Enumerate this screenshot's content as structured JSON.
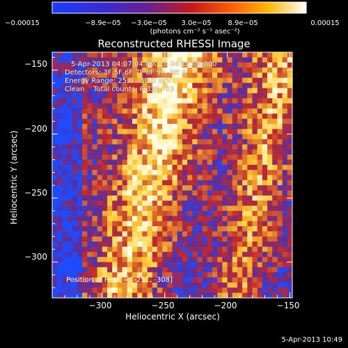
{
  "colorbar": {
    "ticks": [
      "-0.00015",
      "−8.9e−05",
      "−3.0e−05",
      "3.0e−05",
      "8.9e−05",
      "0.00015"
    ],
    "unit": "(photons cm⁻² s⁻¹ asec⁻²)"
  },
  "title": "Reconstructed RHESSI Image",
  "info": {
    "time": "5-Apr-2013 04:07:04.000 to 04:12:08.000",
    "detectors": "Detectors: 3F 5F 6F 7F 8F 9F, Att 0",
    "energy": "Energy Range: 25.0 - 50.0 keV",
    "clean": "Clean    Total counts: 6.33E+03"
  },
  "peak": "Position of Peak = [-251, -308]",
  "timestamp": "5-Apr-2013 10:49",
  "chart_data": {
    "type": "heatmap",
    "title": "Reconstructed RHESSI Image",
    "xlabel": "Heliocentric X (arcsec)",
    "ylabel": "Heliocentric Y (arcsec)",
    "xlim": [
      -340,
      -148
    ],
    "ylim": [
      -328,
      -136
    ],
    "xticks": [
      -300,
      -250,
      -200,
      -150
    ],
    "yticks": [
      -150,
      -200,
      -250,
      -300
    ],
    "colorbar_range": [
      -0.00015,
      0.00015
    ],
    "colormap": "blue-purple-red-yellow-white",
    "colors": {
      "min": "#1e4bff",
      "low": "#5a2fa0",
      "mid": "#c0282d",
      "high": "#ffcc33",
      "max": "#ffffe8"
    },
    "peak_position": [
      -251,
      -308
    ]
  }
}
